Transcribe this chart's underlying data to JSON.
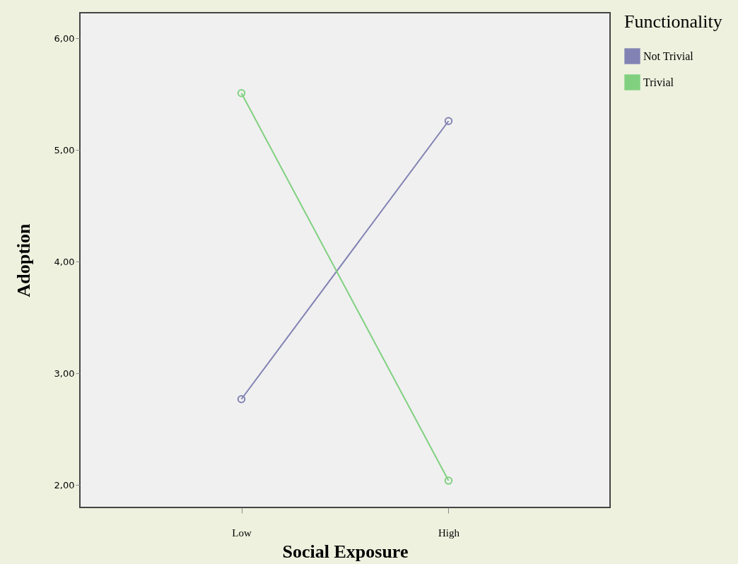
{
  "chart_data": {
    "type": "line",
    "xlabel": "Social Exposure",
    "ylabel": "Adoption",
    "legend_title": "Functionality",
    "categories": [
      "Low",
      "High"
    ],
    "series": [
      {
        "name": "Not Trivial",
        "color": "#8282b4",
        "values": [
          2.77,
          5.26
        ]
      },
      {
        "name": "Trivial",
        "color": "#80d080",
        "values": [
          5.51,
          2.04
        ]
      }
    ],
    "ylim": [
      1.8,
      6.23
    ],
    "yticks": [
      {
        "value": 2,
        "label": "2,00"
      },
      {
        "value": 3,
        "label": "3,00"
      },
      {
        "value": 4,
        "label": "4,00"
      },
      {
        "value": 5,
        "label": "5,00"
      },
      {
        "value": 6,
        "label": "6,00"
      }
    ],
    "grid": false,
    "legend": "top right",
    "marker": "circle",
    "line_style": "solid"
  }
}
